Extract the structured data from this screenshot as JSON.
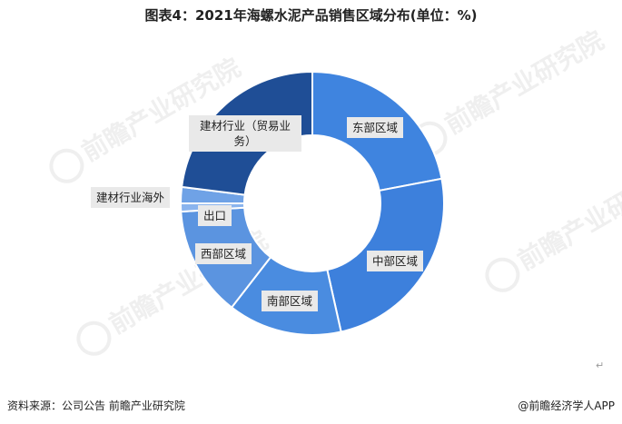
{
  "title": "图表4：2021年海螺水泥产品销售区域分布(单位：%)",
  "footer": {
    "source": "资料来源：公司公告 前瞻产业研究院",
    "brand": "@前瞻经济学人APP"
  },
  "watermark": {
    "text": "前瞻产业研究院"
  },
  "return_mark": "↵",
  "colors": {
    "dark": "#1f4e96",
    "mid": "#3d80dc",
    "light": "#5b94e0",
    "bg": "#ffffff"
  },
  "chart_data": {
    "type": "pie",
    "donut": true,
    "title": "图表4：2021年海螺水泥产品销售区域分布(单位：%)",
    "unit": "%",
    "slices": [
      {
        "label": "东部区域",
        "value": 22.0,
        "color": "#3f84df"
      },
      {
        "label": "中部区域",
        "value": 24.5,
        "color": "#3d80dc"
      },
      {
        "label": "南部区域",
        "value": 14.0,
        "color": "#4a8ce0"
      },
      {
        "label": "西部区域",
        "value": 13.5,
        "color": "#5b94e0"
      },
      {
        "label": "出口",
        "value": 1.0,
        "color": "#8ab4ee"
      },
      {
        "label": "建材行业海外",
        "value": 2.0,
        "color": "#6fa2e6"
      },
      {
        "label": "建材行业（贸易业务）",
        "value": 23.0,
        "color": "#1f4e96"
      }
    ]
  }
}
